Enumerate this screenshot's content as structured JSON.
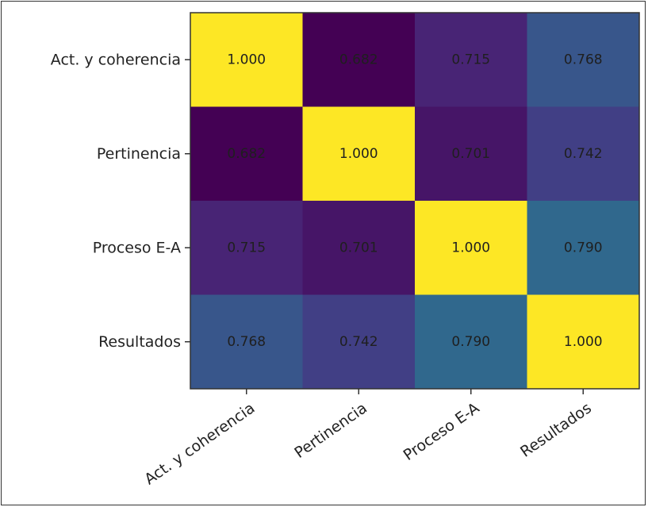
{
  "chart_data": {
    "type": "heatmap",
    "title": "",
    "xlabel": "",
    "ylabel": "",
    "x_categories": [
      "Act. y coherencia",
      "Pertinencia",
      "Proceso E-A",
      "Resultados"
    ],
    "y_categories": [
      "Act. y coherencia",
      "Pertinencia",
      "Proceso E-A",
      "Resultados"
    ],
    "values": [
      [
        1.0,
        0.682,
        0.715,
        0.768
      ],
      [
        0.682,
        1.0,
        0.701,
        0.742
      ],
      [
        0.715,
        0.701,
        1.0,
        0.79
      ],
      [
        0.768,
        0.742,
        0.79,
        1.0
      ]
    ],
    "cell_labels": [
      [
        "1.000",
        "0.682",
        "0.715",
        "0.768"
      ],
      [
        "0.682",
        "1.000",
        "0.701",
        "0.742"
      ],
      [
        "0.715",
        "0.701",
        "1.000",
        "0.790"
      ],
      [
        "0.768",
        "0.742",
        "0.790",
        "1.000"
      ]
    ],
    "colormap": "viridis",
    "colors": {
      "low": "#440154",
      "high": "#fde725",
      "text": "#1f1f1f",
      "axis": "#333333"
    },
    "legend": "none",
    "grid": false
  }
}
